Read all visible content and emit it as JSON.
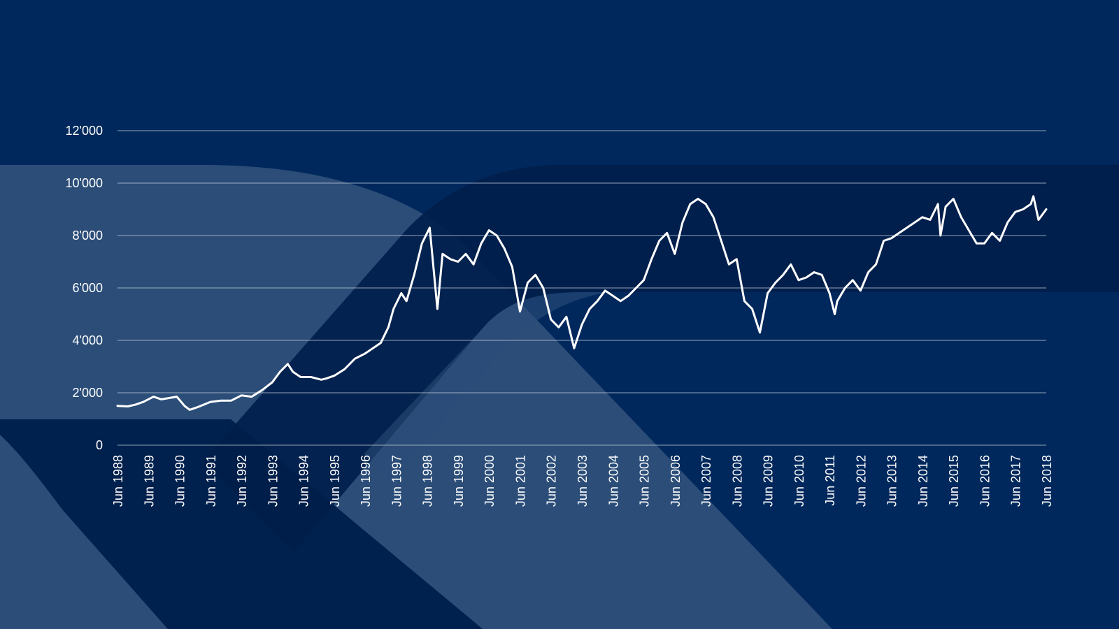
{
  "theme": {
    "background": "#00285c",
    "band_light": "#2b4d78",
    "band_dark": "#001e4a",
    "line": "#ffffff",
    "grid": "#c7d0dc",
    "text": "#ffffff"
  },
  "chart_data": {
    "type": "line",
    "title": "",
    "xlabel": "",
    "ylabel": "",
    "ylim": [
      0,
      12000
    ],
    "xlim": [
      "1988-06",
      "2018-06"
    ],
    "grid": "horizontal",
    "legend": "none",
    "y_ticks": [
      {
        "value": 0,
        "label": "0"
      },
      {
        "value": 2000,
        "label": "2'000"
      },
      {
        "value": 4000,
        "label": "4'000"
      },
      {
        "value": 6000,
        "label": "6'000"
      },
      {
        "value": 8000,
        "label": "8'000"
      },
      {
        "value": 10000,
        "label": "10'000"
      },
      {
        "value": 12000,
        "label": "12'000"
      }
    ],
    "x_ticks": [
      {
        "date": "1988-06",
        "label": "Jun 1988"
      },
      {
        "date": "1989-06",
        "label": "Jun 1989"
      },
      {
        "date": "1990-06",
        "label": "Jun 1990"
      },
      {
        "date": "1991-06",
        "label": "Jun 1991"
      },
      {
        "date": "1992-06",
        "label": "Jun 1992"
      },
      {
        "date": "1993-06",
        "label": "Jun 1993"
      },
      {
        "date": "1994-06",
        "label": "Jun 1994"
      },
      {
        "date": "1995-06",
        "label": "Jun 1995"
      },
      {
        "date": "1996-06",
        "label": "Jun 1996"
      },
      {
        "date": "1997-06",
        "label": "Jun 1997"
      },
      {
        "date": "1998-06",
        "label": "Jun 1998"
      },
      {
        "date": "1999-06",
        "label": "Jun 1999"
      },
      {
        "date": "2000-06",
        "label": "Jun 2000"
      },
      {
        "date": "2001-06",
        "label": "Jun 2001"
      },
      {
        "date": "2002-06",
        "label": "Jun 2002"
      },
      {
        "date": "2003-06",
        "label": "Jun 2003"
      },
      {
        "date": "2004-06",
        "label": "Jun 2004"
      },
      {
        "date": "2005-06",
        "label": "Jun 2005"
      },
      {
        "date": "2006-06",
        "label": "Jun 2006"
      },
      {
        "date": "2007-06",
        "label": "Jun 2007"
      },
      {
        "date": "2008-06",
        "label": "Jun 2008"
      },
      {
        "date": "2009-06",
        "label": "Jun 2009"
      },
      {
        "date": "2010-06",
        "label": "Jun 2010"
      },
      {
        "date": "2011-06",
        "label": "Jun 2011"
      },
      {
        "date": "2012-06",
        "label": "Jun 2012"
      },
      {
        "date": "2013-06",
        "label": "Jun 2013"
      },
      {
        "date": "2014-06",
        "label": "Jun 2014"
      },
      {
        "date": "2015-06",
        "label": "Jun 2015"
      },
      {
        "date": "2016-06",
        "label": "Jun 2016"
      },
      {
        "date": "2017-06",
        "label": "Jun 2017"
      },
      {
        "date": "2018-06",
        "label": "Jun 2018"
      }
    ],
    "series": [
      {
        "x": [
          "1988-06",
          "1988-10",
          "1989-01",
          "1989-04",
          "1989-08",
          "1989-11",
          "1990-02",
          "1990-05",
          "1990-08",
          "1990-10",
          "1991-01",
          "1991-06",
          "1991-10",
          "1992-02",
          "1992-06",
          "1992-10",
          "1993-02",
          "1993-06",
          "1993-09",
          "1993-12",
          "1994-02",
          "1994-05",
          "1994-09",
          "1995-01",
          "1995-03",
          "1995-06",
          "1995-10",
          "1996-02",
          "1996-06",
          "1996-09",
          "1996-12",
          "1997-03",
          "1997-05",
          "1997-08",
          "1997-10",
          "1998-01",
          "1998-04",
          "1998-07",
          "1998-10",
          "1998-12",
          "1999-03",
          "1999-06",
          "1999-09",
          "1999-12",
          "2000-03",
          "2000-06",
          "2000-09",
          "2000-12",
          "2001-03",
          "2001-06",
          "2001-09",
          "2001-12",
          "2002-03",
          "2002-06",
          "2002-09",
          "2002-12",
          "2003-03",
          "2003-06",
          "2003-09",
          "2003-12",
          "2004-03",
          "2004-06",
          "2004-09",
          "2004-12",
          "2005-03",
          "2005-06",
          "2005-09",
          "2005-12",
          "2006-03",
          "2006-06",
          "2006-09",
          "2006-12",
          "2007-03",
          "2007-06",
          "2007-09",
          "2007-12",
          "2008-03",
          "2008-06",
          "2008-09",
          "2008-12",
          "2009-03",
          "2009-06",
          "2009-09",
          "2009-12",
          "2010-03",
          "2010-06",
          "2010-09",
          "2010-12",
          "2011-03",
          "2011-06",
          "2011-08",
          "2011-09",
          "2011-12",
          "2012-03",
          "2012-06",
          "2012-09",
          "2012-12",
          "2013-03",
          "2013-06",
          "2013-09",
          "2013-12",
          "2014-03",
          "2014-06",
          "2014-09",
          "2014-12",
          "2015-01",
          "2015-03",
          "2015-06",
          "2015-09",
          "2015-12",
          "2016-03",
          "2016-06",
          "2016-09",
          "2016-12",
          "2017-03",
          "2017-06",
          "2017-09",
          "2017-12",
          "2018-01",
          "2018-03",
          "2018-06"
        ],
        "y": [
          1500,
          1480,
          1550,
          1650,
          1850,
          1750,
          1800,
          1850,
          1500,
          1350,
          1450,
          1650,
          1700,
          1700,
          1900,
          1850,
          2100,
          2400,
          2800,
          3100,
          2800,
          2600,
          2600,
          2500,
          2550,
          2650,
          2900,
          3300,
          3500,
          3700,
          3900,
          4500,
          5200,
          5800,
          5500,
          6500,
          7700,
          8300,
          5200,
          7300,
          7100,
          7000,
          7300,
          6900,
          7700,
          8200,
          8000,
          7500,
          6800,
          5100,
          6200,
          6500,
          6000,
          4800,
          4500,
          4900,
          3700,
          4600,
          5200,
          5500,
          5900,
          5700,
          5500,
          5700,
          6000,
          6300,
          7100,
          7800,
          8100,
          7300,
          8500,
          9200,
          9400,
          9200,
          8700,
          7800,
          6900,
          7100,
          5500,
          5200,
          4300,
          5800,
          6200,
          6500,
          6900,
          6300,
          6400,
          6600,
          6500,
          5800,
          5000,
          5500,
          6000,
          6300,
          5900,
          6600,
          6900,
          7800,
          7900,
          8100,
          8300,
          8500,
          8700,
          8600,
          9200,
          8000,
          9100,
          9400,
          8700,
          8200,
          7700,
          7700,
          8100,
          7800,
          8500,
          8900,
          9000,
          9200,
          9500,
          8600,
          9000
        ]
      }
    ]
  }
}
